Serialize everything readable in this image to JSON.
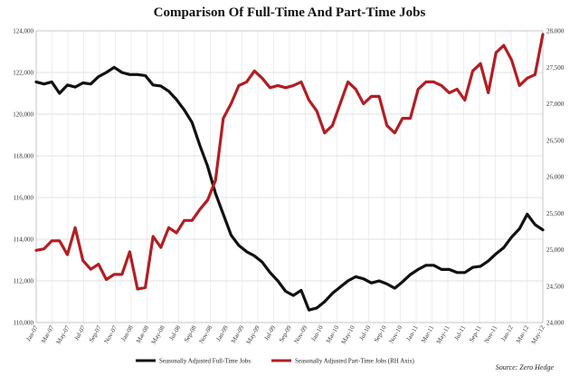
{
  "chart_data": {
    "type": "line",
    "title": "Comparison Of Full-Time And Part-Time Jobs",
    "source": "Source: Zero Hedge",
    "x_labels": [
      "Jan-07",
      "Mar-07",
      "May-07",
      "Jul-07",
      "Sep-07",
      "Nov-07",
      "Jan-08",
      "Mar-08",
      "May-08",
      "Jul-08",
      "Sep-08",
      "Nov-08",
      "Jan-09",
      "Mar-09",
      "May-09",
      "Jul-09",
      "Sep-09",
      "Nov-09",
      "Jan-10",
      "Mar-10",
      "May-10",
      "Jul-10",
      "Sep-10",
      "Nov-10",
      "Jan-11",
      "Mar-11",
      "May-11",
      "Jul-11",
      "Sep-11",
      "Nov-11",
      "Jan-12",
      "Mar-12",
      "May-12"
    ],
    "left_axis": {
      "min": 110000,
      "max": 124000,
      "ticks": [
        "110,000",
        "112,000",
        "114,000",
        "116,000",
        "118,000",
        "120,000",
        "122,000",
        "124,000"
      ]
    },
    "right_axis": {
      "min": 24000,
      "max": 28000,
      "ticks": [
        "24,000",
        "24,500",
        "25,000",
        "25,500",
        "26,000",
        "26,500",
        "27,000",
        "27,500",
        "28,000"
      ]
    },
    "series": [
      {
        "name": "Seasonally Adjusted Full-Time Jobs",
        "axis": "left",
        "color": "#111111",
        "values": [
          121550,
          121450,
          121550,
          121000,
          121400,
          121300,
          121500,
          121450,
          121800,
          122000,
          122250,
          122000,
          121900,
          121900,
          121850,
          121400,
          121350,
          121100,
          120700,
          120200,
          119600,
          118500,
          117500,
          116200,
          115200,
          114200,
          113700,
          113400,
          113200,
          112900,
          112400,
          112000,
          111500,
          111300,
          111550,
          110600,
          110700,
          111000,
          111400,
          111700,
          112000,
          112200,
          112100,
          111900,
          112000,
          111850,
          111650,
          111950,
          112300,
          112550,
          112750,
          112750,
          112550,
          112550,
          112400,
          112400,
          112650,
          112700,
          112950,
          113300,
          113600,
          114100,
          114500,
          115200,
          114700,
          114450
        ]
      },
      {
        "name": "Seasonally Adjusted Part-Time Jobs (RH Axis)",
        "axis": "right",
        "color": "#b21e23",
        "values": [
          24990,
          25010,
          25120,
          25120,
          24930,
          25300,
          24850,
          24730,
          24800,
          24590,
          24660,
          24660,
          24970,
          24460,
          24480,
          25180,
          25030,
          25300,
          25230,
          25400,
          25400,
          25550,
          25680,
          25950,
          26800,
          27000,
          27250,
          27300,
          27450,
          27350,
          27220,
          27250,
          27220,
          27250,
          27300,
          27050,
          26900,
          26600,
          26700,
          27000,
          27300,
          27200,
          27000,
          27100,
          27100,
          26700,
          26600,
          26800,
          26800,
          27200,
          27300,
          27300,
          27250,
          27150,
          27200,
          27050,
          27450,
          27550,
          27150,
          27700,
          27800,
          27600,
          27250,
          27350,
          27400,
          27950
        ]
      }
    ],
    "grid": true,
    "legend_position": "bottom"
  }
}
